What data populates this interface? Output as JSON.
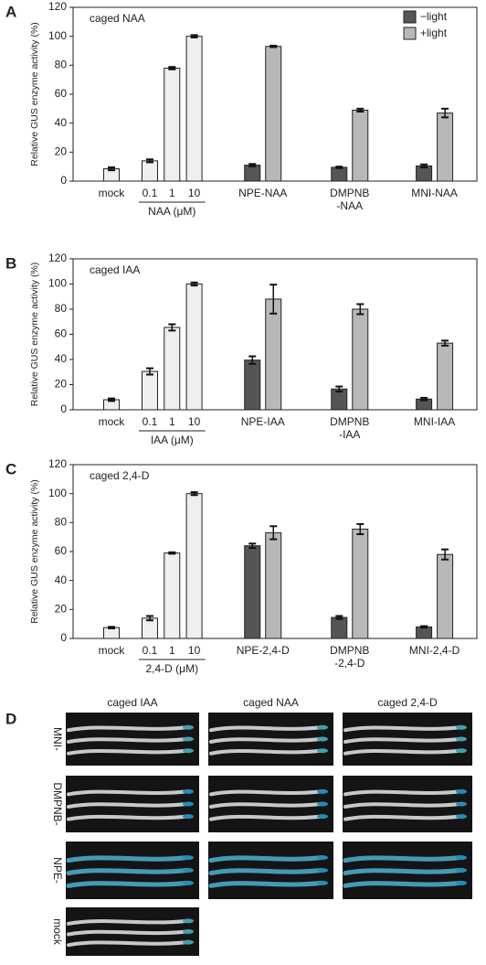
{
  "chart_data": [
    {
      "type": "bar",
      "panel": "A",
      "title": "caged NAA",
      "y_label": "Relative GUS enzyme activity (%)",
      "categories": [
        "mock",
        "0.1",
        "1",
        "10",
        "NPE-NAA",
        [
          "DMPNB",
          "-NAA"
        ],
        "MNI-NAA"
      ],
      "group_label": "NAA (μM)",
      "ylim": [
        0,
        120
      ],
      "yticks": [
        0,
        20,
        40,
        60,
        80,
        100,
        120
      ],
      "legend": "upper right",
      "series": [
        {
          "color": "#efefef",
          "values": [
            8.5,
            14,
            78,
            100,
            null,
            null,
            null
          ],
          "errors": [
            1,
            1,
            0.8,
            0.8,
            null,
            null,
            null
          ]
        },
        {
          "name": "−light",
          "color": "#555555",
          "values": [
            null,
            null,
            null,
            null,
            11,
            9.5,
            10.5
          ],
          "errors": [
            null,
            null,
            null,
            null,
            0.8,
            0.5,
            1
          ]
        },
        {
          "name": "+light",
          "color": "#b8b8b8",
          "values": [
            null,
            null,
            null,
            null,
            93,
            49,
            47
          ],
          "errors": [
            null,
            null,
            null,
            null,
            0.5,
            1,
            3
          ]
        }
      ]
    },
    {
      "type": "bar",
      "panel": "B",
      "title": "caged IAA",
      "y_label": "Relative GUS enzyme activity (%)",
      "categories": [
        "mock",
        "0.1",
        "1",
        "10",
        "NPE-IAA",
        [
          "DMPNB",
          "-IAA"
        ],
        "MNI-IAA"
      ],
      "group_label": "IAA (μM)",
      "ylim": [
        0,
        120
      ],
      "yticks": [
        0,
        20,
        40,
        60,
        80,
        100,
        120
      ],
      "legend": false,
      "series": [
        {
          "color": "#efefef",
          "values": [
            8,
            30.5,
            65.5,
            100,
            null,
            null,
            null
          ],
          "errors": [
            1,
            2.5,
            2.5,
            1.2,
            null,
            null,
            null
          ]
        },
        {
          "color": "#555555",
          "values": [
            null,
            null,
            null,
            null,
            39.5,
            16.5,
            8.5
          ],
          "errors": [
            null,
            null,
            null,
            null,
            3,
            2,
            1
          ]
        },
        {
          "color": "#b8b8b8",
          "values": [
            null,
            null,
            null,
            null,
            88,
            80,
            53
          ],
          "errors": [
            null,
            null,
            null,
            null,
            11.5,
            4,
            2
          ]
        }
      ]
    },
    {
      "type": "bar",
      "panel": "C",
      "title": "caged 2,4-D",
      "y_label": "Relative GUS enzyme activity (%)",
      "categories": [
        "mock",
        "0.1",
        "1",
        "10",
        "NPE-2,4-D",
        [
          "DMPNB",
          "-2,4-D"
        ],
        "MNI-2,4-D"
      ],
      "group_label": "2,4-D (μM)",
      "ylim": [
        0,
        120
      ],
      "yticks": [
        0,
        20,
        40,
        60,
        80,
        100,
        120
      ],
      "legend": false,
      "series": [
        {
          "color": "#efefef",
          "values": [
            7.5,
            14,
            59,
            100,
            null,
            null,
            null
          ],
          "errors": [
            0.5,
            1.5,
            0.5,
            1,
            null,
            null,
            null
          ]
        },
        {
          "color": "#555555",
          "values": [
            null,
            null,
            null,
            null,
            64,
            14.5,
            8
          ],
          "errors": [
            null,
            null,
            null,
            null,
            1.5,
            1,
            0.5
          ]
        },
        {
          "color": "#b8b8b8",
          "values": [
            null,
            null,
            null,
            null,
            73,
            75.5,
            58
          ],
          "errors": [
            null,
            null,
            null,
            null,
            4.5,
            3.5,
            3.5
          ]
        }
      ]
    }
  ],
  "panel_d": {
    "label": "D",
    "columns": [
      "caged IAA",
      "caged NAA",
      "caged 2,4-D"
    ],
    "rows": [
      "MNI-",
      "DMPNB-",
      "NPE-",
      "mock"
    ]
  }
}
